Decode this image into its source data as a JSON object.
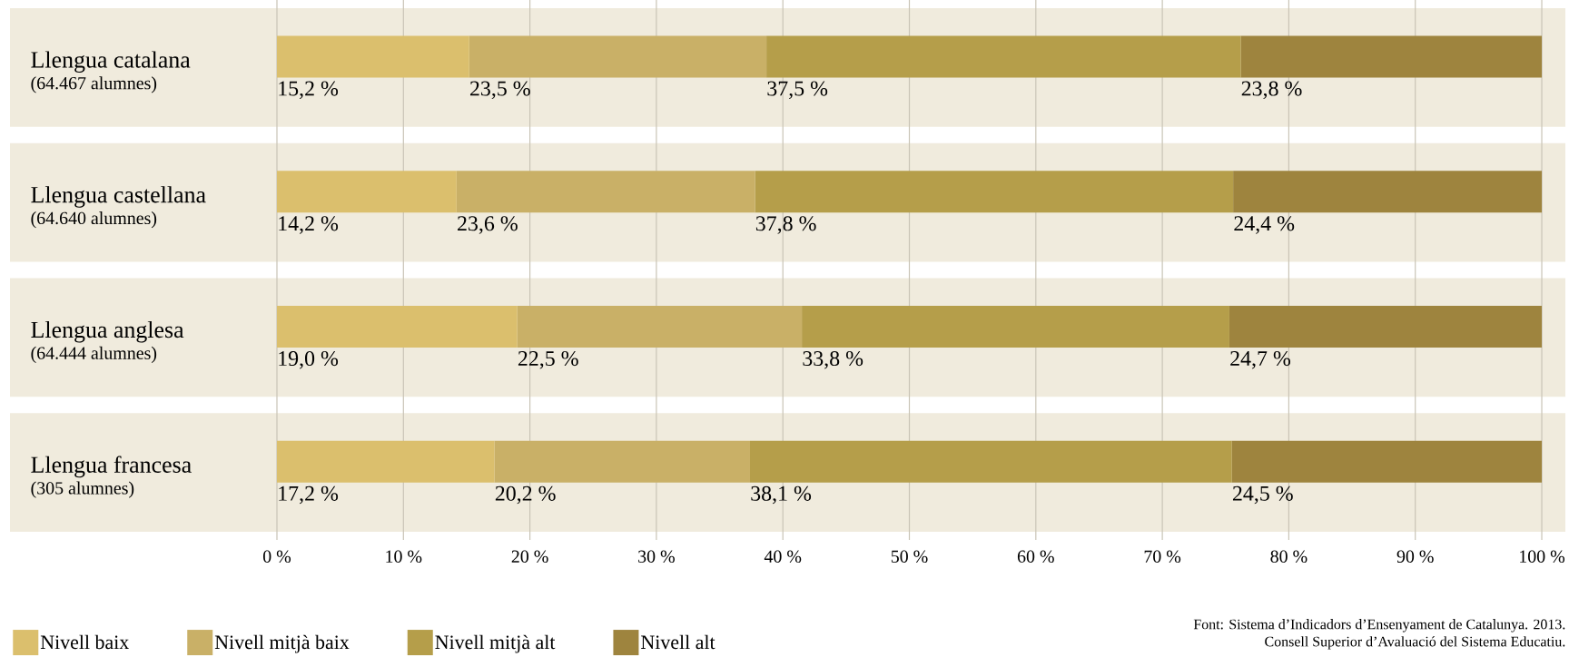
{
  "chart_data": {
    "type": "bar",
    "orientation": "horizontal",
    "stacked": true,
    "categories": [
      "Llengua catalana",
      "Llengua castellana",
      "Llengua anglesa",
      "Llengua francesa"
    ],
    "series": [
      {
        "name": "Nivell baix",
        "color": "#dbbf6d",
        "values": [
          15.2,
          14.2,
          19.0,
          17.2
        ],
        "value_labels": [
          "15,2 %",
          "14,2 %",
          "19,0 %",
          "17,2 %"
        ]
      },
      {
        "name": "Nivell mitjà baix",
        "color": "#c9b067",
        "values": [
          23.5,
          23.6,
          22.5,
          20.2
        ],
        "value_labels": [
          "23,5 %",
          "23,6 %",
          "22,5 %",
          "20,2 %"
        ]
      },
      {
        "name": "Nivell mitjà alt",
        "color": "#b59e4a",
        "values": [
          37.5,
          37.8,
          33.8,
          38.1
        ],
        "value_labels": [
          "37,5 %",
          "37,8 %",
          "33,8 %",
          "38,1 %"
        ]
      },
      {
        "name": "Nivell alt",
        "color": "#9e843e",
        "values": [
          23.8,
          24.4,
          24.7,
          24.5
        ],
        "value_labels": [
          "23,8 %",
          "24,4 %",
          "24,7 %",
          "24,5 %"
        ]
      }
    ],
    "xlim": [
      0,
      100
    ],
    "xticks": [
      {
        "value": 0,
        "label": "0 %"
      },
      {
        "value": 10,
        "label": "10 %"
      },
      {
        "value": 20,
        "label": "20 %"
      },
      {
        "value": 30,
        "label": "30 %"
      },
      {
        "value": 40,
        "label": "40 %"
      },
      {
        "value": 50,
        "label": "50 %"
      },
      {
        "value": 60,
        "label": "60 %"
      },
      {
        "value": 70,
        "label": "70 %"
      },
      {
        "value": 80,
        "label": "80 %"
      },
      {
        "value": 90,
        "label": "90 %"
      },
      {
        "value": 100,
        "label": "100 %"
      }
    ],
    "grid": "x",
    "legend": "bottom left",
    "annotations": [
      "(64.467 alumnes)",
      "(64.640 alumnes)",
      "(64.444 alumnes)",
      "(305 alumnes)",
      "Font: Sistema d’Indicadors d’Ensenyament de Catalunya. 2013.",
      "Consell Superior d’Avaluació del Sistema Educatiu."
    ]
  }
}
